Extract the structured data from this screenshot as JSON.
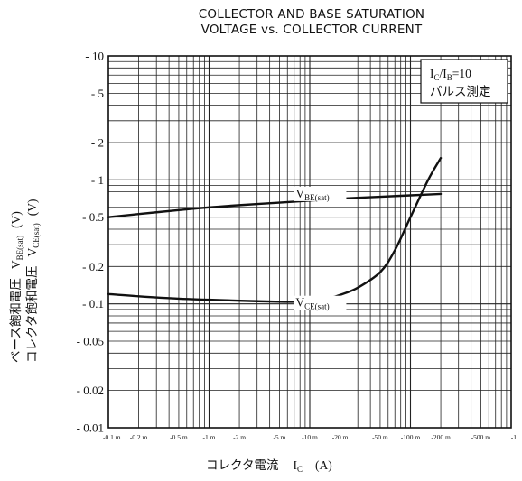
{
  "title_lines": [
    "COLLECTOR AND BASE SATURATION",
    "VOLTAGE vs. COLLECTOR CURRENT"
  ],
  "legend": {
    "line1": "I",
    "line1_sub1": "C",
    "line1_mid": "/I",
    "line1_sub2": "B",
    "line1_end": "=10",
    "line2": "パルス測定"
  },
  "chart_data": {
    "type": "line",
    "xscale": "log",
    "yscale": "log",
    "xlim": [
      0.0001,
      1
    ],
    "ylim": [
      0.01,
      10
    ],
    "grid": true,
    "xlabel": {
      "text": "コレクタ電流",
      "var": "I",
      "sub": "C",
      "unit": "(A)"
    },
    "ylabel_lines": [
      {
        "text": "ベース飽和電圧",
        "var": "V",
        "sub": "BE(sat)",
        "unit": "(V)"
      },
      {
        "text": "コレクタ飽和電圧",
        "var": "V",
        "sub": "CE(sat)",
        "unit": "(V)"
      }
    ],
    "yticks": [
      {
        "v": 10,
        "label": "- 10"
      },
      {
        "v": 5,
        "label": "- 5"
      },
      {
        "v": 2,
        "label": "- 2"
      },
      {
        "v": 1,
        "label": "- 1"
      },
      {
        "v": 0.5,
        "label": "- 0.5"
      },
      {
        "v": 0.2,
        "label": "- 0.2"
      },
      {
        "v": 0.1,
        "label": "- 0.1"
      },
      {
        "v": 0.05,
        "label": "- 0.05"
      },
      {
        "v": 0.02,
        "label": "- 0.02"
      },
      {
        "v": 0.01,
        "label": "- 0.01"
      }
    ],
    "xticks": [
      {
        "v": 0.0001,
        "label": "-0.1 m"
      },
      {
        "v": 0.0002,
        "label": "-0.2 m"
      },
      {
        "v": 0.0005,
        "label": "-0.5 m"
      },
      {
        "v": 0.001,
        "label": "-1 m"
      },
      {
        "v": 0.002,
        "label": "-2 m"
      },
      {
        "v": 0.005,
        "label": "-5 m"
      },
      {
        "v": 0.01,
        "label": "-10 m"
      },
      {
        "v": 0.02,
        "label": "-20 m"
      },
      {
        "v": 0.05,
        "label": "-50 m"
      },
      {
        "v": 0.1,
        "label": "-100 m"
      },
      {
        "v": 0.2,
        "label": "-200 m"
      },
      {
        "v": 0.5,
        "label": "-500 m"
      },
      {
        "v": 1,
        "label": "-1"
      }
    ],
    "series": [
      {
        "name": "V",
        "name_sub": "BE(sat)",
        "label_at": [
          0.005,
          0.72
        ],
        "x": [
          0.0001,
          0.0002,
          0.0005,
          0.001,
          0.002,
          0.005,
          0.01,
          0.02,
          0.05,
          0.1,
          0.2
        ],
        "y": [
          0.5,
          0.53,
          0.57,
          0.6,
          0.625,
          0.655,
          0.68,
          0.705,
          0.73,
          0.75,
          0.77
        ]
      },
      {
        "name": "V",
        "name_sub": "CE(sat)",
        "label_at": [
          0.005,
          0.095
        ],
        "x": [
          0.0001,
          0.0002,
          0.0005,
          0.001,
          0.002,
          0.005,
          0.008,
          0.01,
          0.015,
          0.02,
          0.03,
          0.05,
          0.07,
          0.1,
          0.15,
          0.2
        ],
        "y": [
          0.12,
          0.115,
          0.11,
          0.108,
          0.106,
          0.104,
          0.104,
          0.105,
          0.11,
          0.118,
          0.135,
          0.18,
          0.27,
          0.5,
          1.0,
          1.5
        ]
      }
    ]
  }
}
